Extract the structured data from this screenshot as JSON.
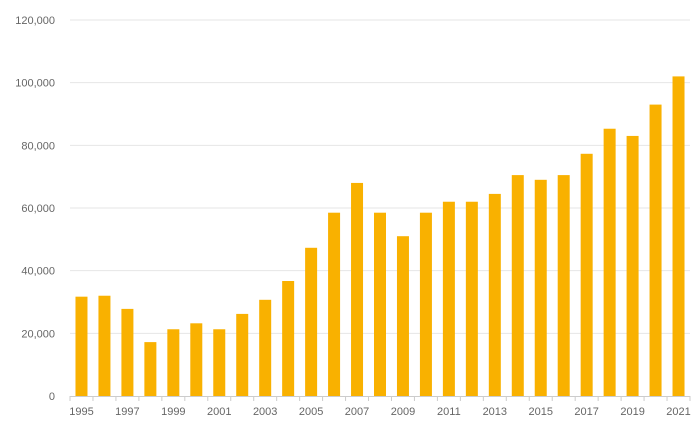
{
  "chart_data": {
    "type": "bar",
    "categories": [
      "1995",
      "1996",
      "1997",
      "1998",
      "1999",
      "2000",
      "2001",
      "2002",
      "2003",
      "2004",
      "2005",
      "2006",
      "2007",
      "2008",
      "2009",
      "2010",
      "2011",
      "2012",
      "2013",
      "2014",
      "2015",
      "2016",
      "2017",
      "2018",
      "2019",
      "2020",
      "2021"
    ],
    "x_tick_labels": [
      "1995",
      "1997",
      "1999",
      "2001",
      "2003",
      "2005",
      "2007",
      "2009",
      "2011",
      "2013",
      "2015",
      "2017",
      "2019",
      "2021"
    ],
    "values": [
      31700,
      32000,
      27800,
      17200,
      21300,
      23200,
      21300,
      26200,
      30700,
      36700,
      47300,
      58500,
      68000,
      58500,
      51000,
      58500,
      62000,
      62000,
      64500,
      70500,
      69000,
      70500,
      77300,
      85300,
      83000,
      93000,
      102000
    ],
    "y_ticks": [
      0,
      20000,
      40000,
      60000,
      80000,
      100000,
      120000
    ],
    "y_tick_labels": [
      "0",
      "20,000",
      "40,000",
      "60,000",
      "80,000",
      "100,000",
      "120,000"
    ],
    "ylim": [
      0,
      120000
    ],
    "title": "",
    "xlabel": "",
    "ylabel": "",
    "grid": true,
    "legend": "none",
    "bar_color": "#f9b100",
    "grid_color": "#e6e6e6",
    "axis_color": "#cccccc",
    "tick_text_color": "#666666"
  }
}
